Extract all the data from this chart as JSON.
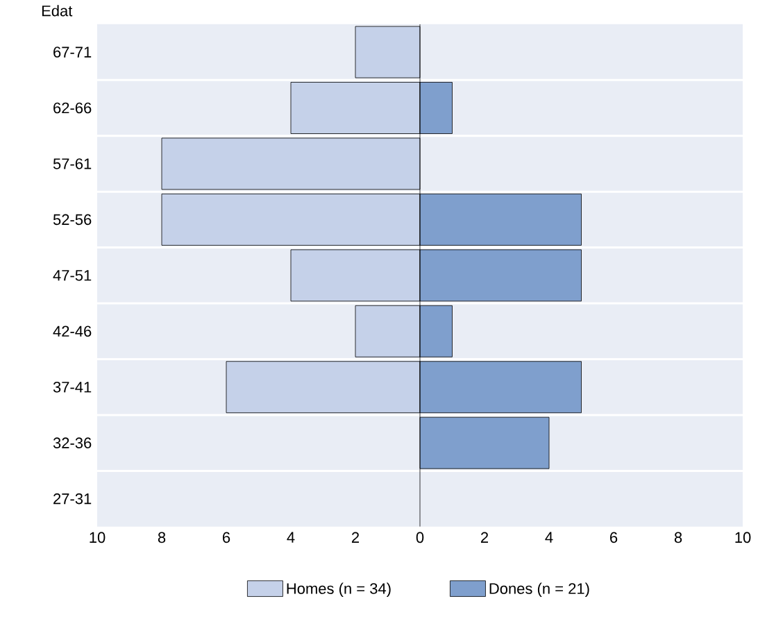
{
  "chart_data": {
    "type": "bar",
    "orientation": "horizontal",
    "ylabel": "Edat",
    "categories": [
      "67-71",
      "62-66",
      "57-61",
      "52-56",
      "47-51",
      "42-46",
      "37-41",
      "32-36",
      "27-31"
    ],
    "series": [
      {
        "name": "Homes (n = 34)",
        "color": "#c5d1e9",
        "values": [
          -2,
          -4,
          -8,
          -8,
          -4,
          -2,
          -6,
          0,
          0
        ]
      },
      {
        "name": "Dones (n = 21)",
        "color": "#7f9fcd",
        "values": [
          0,
          1,
          0,
          5,
          5,
          1,
          5,
          4,
          0
        ]
      }
    ],
    "xlim": [
      -10,
      10
    ],
    "xticks": [
      {
        "value": -10,
        "label": "10"
      },
      {
        "value": -8,
        "label": "8"
      },
      {
        "value": -6,
        "label": "6"
      },
      {
        "value": -4,
        "label": "4"
      },
      {
        "value": -2,
        "label": "2"
      },
      {
        "value": 0,
        "label": "0"
      },
      {
        "value": 2,
        "label": "2"
      },
      {
        "value": 4,
        "label": "4"
      },
      {
        "value": 6,
        "label": "6"
      },
      {
        "value": 8,
        "label": "8"
      },
      {
        "value": 10,
        "label": "10"
      }
    ],
    "grid": "y",
    "legend": "bottom",
    "stacked": true
  }
}
